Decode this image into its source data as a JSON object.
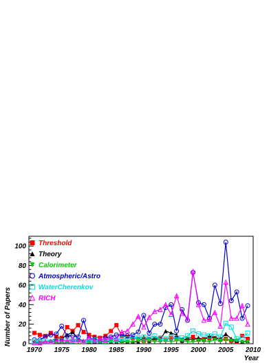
{
  "chart_data": {
    "type": "line",
    "xlabel": "Year",
    "ylabel": "Number of Papers",
    "xlim": [
      1969,
      2010
    ],
    "ylim": [
      0,
      110
    ],
    "xticks": [
      1970,
      1975,
      1980,
      1985,
      1990,
      1995,
      2000,
      2005,
      2010
    ],
    "yticks": [
      0,
      20,
      40,
      60,
      80,
      100
    ],
    "x": [
      1970,
      1971,
      1972,
      1973,
      1974,
      1975,
      1976,
      1977,
      1978,
      1979,
      1980,
      1981,
      1982,
      1983,
      1984,
      1985,
      1986,
      1987,
      1988,
      1989,
      1990,
      1991,
      1992,
      1993,
      1994,
      1995,
      1996,
      1997,
      1998,
      1999,
      2000,
      2001,
      2002,
      2003,
      2004,
      2005,
      2006,
      2007,
      2008,
      2009
    ],
    "legend_position": "top-left",
    "series": [
      {
        "name": "Threshold",
        "color": "#ff0000",
        "marker": "filled-square",
        "values": [
          11,
          9,
          8,
          11,
          7,
          6,
          17,
          13,
          19,
          12,
          9,
          7,
          6,
          8,
          13,
          19,
          8,
          7,
          6,
          5,
          3,
          5,
          5,
          6,
          4,
          6,
          5,
          4,
          5,
          7,
          4,
          5,
          6,
          6,
          4,
          5,
          3,
          2,
          8,
          5
        ]
      },
      {
        "name": "Theory",
        "color": "#000000",
        "marker": "filled-triangle",
        "values": [
          2,
          1,
          2,
          3,
          5,
          5,
          9,
          12,
          5,
          3,
          2,
          2,
          2,
          3,
          2,
          2,
          3,
          2,
          2,
          2,
          7,
          3,
          5,
          4,
          13,
          11,
          9,
          3,
          5,
          4,
          6,
          4,
          8,
          6,
          5,
          10,
          5,
          3,
          2,
          3
        ]
      },
      {
        "name": "Calorimeter",
        "color": "#00cc00",
        "marker": "filled-triangle-down",
        "values": [
          1,
          1,
          1,
          2,
          1,
          1,
          1,
          2,
          2,
          1,
          2,
          2,
          2,
          1,
          2,
          2,
          2,
          2,
          2,
          3,
          2,
          3,
          2,
          3,
          3,
          2,
          3,
          3,
          2,
          2,
          3,
          3,
          2,
          4,
          3,
          4,
          3,
          3,
          2,
          2
        ]
      },
      {
        "name": "Atmospheric/Astro",
        "color": "#0000cc",
        "marker": "open-circle",
        "values": [
          4,
          4,
          7,
          9,
          10,
          18,
          8,
          8,
          7,
          24,
          5,
          5,
          3,
          6,
          7,
          9,
          9,
          8,
          9,
          12,
          29,
          11,
          20,
          20,
          37,
          40,
          13,
          35,
          24,
          73,
          42,
          40,
          26,
          60,
          41,
          104,
          44,
          53,
          26,
          39
        ]
      },
      {
        "name": "WaterCherenkov",
        "color": "#00e0e0",
        "marker": "open-square",
        "values": [
          2,
          2,
          3,
          2,
          3,
          3,
          3,
          3,
          4,
          2,
          3,
          4,
          3,
          3,
          4,
          4,
          5,
          5,
          6,
          6,
          7,
          6,
          8,
          5,
          5,
          7,
          6,
          6,
          8,
          13,
          10,
          9,
          8,
          10,
          7,
          21,
          17,
          5,
          6,
          11
        ]
      },
      {
        "name": "RICH",
        "color": "#ff00ff",
        "marker": "open-triangle",
        "values": [
          1,
          1,
          2,
          2,
          3,
          3,
          3,
          4,
          4,
          2,
          6,
          3,
          5,
          4,
          6,
          5,
          12,
          13,
          20,
          28,
          17,
          27,
          33,
          35,
          40,
          30,
          49,
          31,
          26,
          74,
          40,
          24,
          25,
          32,
          18,
          63,
          26,
          26,
          39,
          20
        ]
      }
    ]
  }
}
